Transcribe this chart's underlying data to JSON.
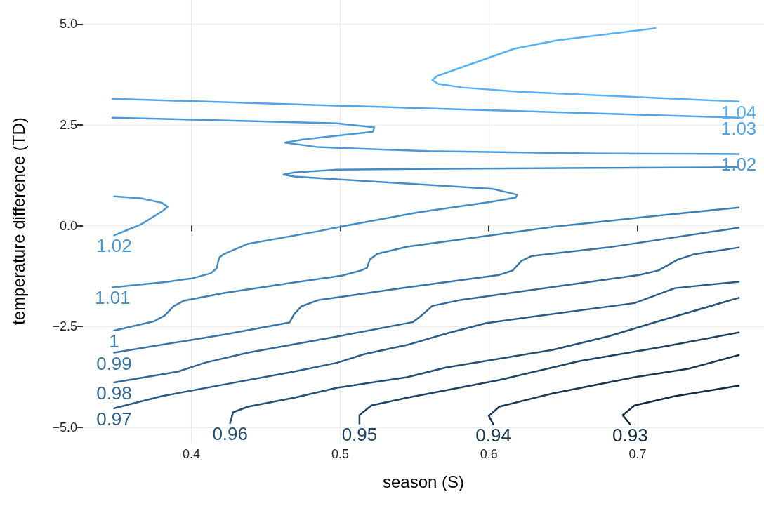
{
  "chart_data": {
    "type": "line",
    "xlabel": "season (S)",
    "ylabel": "temperature difference (TD)",
    "xlim": [
      0.327,
      0.785
    ],
    "ylim": [
      -5.37,
      5.6
    ],
    "xticks": [
      0.4,
      0.5,
      0.6,
      0.7
    ],
    "yticks": [
      {
        "value": -5,
        "label": "−5.0"
      },
      {
        "value": -2.5,
        "label": "−2.5"
      },
      {
        "value": 0,
        "label": "0.0"
      },
      {
        "value": 2.5,
        "label": "2.5"
      },
      {
        "value": 5,
        "label": "5.0"
      }
    ],
    "grid": true,
    "series": [
      {
        "name": "1.04",
        "color": "#56b1f7",
        "x": [
          0.712,
          0.646,
          0.617,
          0.565,
          0.562,
          0.566,
          0.582,
          0.617,
          0.768
        ],
        "values": [
          4.9,
          4.6,
          4.39,
          3.71,
          3.61,
          3.52,
          3.43,
          3.33,
          3.08
        ]
      },
      {
        "name": "1.03",
        "color": "#50a5e7",
        "x": [
          0.347,
          0.559,
          0.768
        ],
        "values": [
          3.15,
          2.91,
          2.68
        ]
      },
      {
        "name": "1.02",
        "color": "#4a99d6",
        "x": [
          0.347,
          0.498,
          0.523,
          0.522,
          0.475,
          0.463,
          0.485,
          0.559,
          0.675,
          0.768
        ],
        "values": [
          2.68,
          2.54,
          2.44,
          2.33,
          2.14,
          2.06,
          1.95,
          1.85,
          1.79,
          1.78
        ]
      },
      {
        "name": "1.02",
        "color": "#4a99d6",
        "x": [
          0.348,
          0.366,
          0.38,
          0.384,
          0.38,
          0.366,
          0.356,
          0.348
        ],
        "values": [
          0.73,
          0.68,
          0.57,
          0.47,
          0.35,
          0.03,
          -0.12,
          -0.24
        ]
      },
      {
        "name": "1.01",
        "color": "#448cc6",
        "x": [
          0.767,
          0.649,
          0.554,
          0.498,
          0.469,
          0.462,
          0.469,
          0.498,
          0.552,
          0.603,
          0.619,
          0.618,
          0.601,
          0.552,
          0.501,
          0.485,
          0.438,
          0.422,
          0.419,
          0.418,
          0.417,
          0.413,
          0.4,
          0.384,
          0.347
        ],
        "values": [
          1.45,
          1.43,
          1.41,
          1.39,
          1.32,
          1.27,
          1.22,
          1.15,
          1.03,
          0.91,
          0.77,
          0.7,
          0.59,
          0.33,
          -0.02,
          -0.14,
          -0.45,
          -0.7,
          -0.78,
          -0.89,
          -1.06,
          -1.18,
          -1.31,
          -1.39,
          -1.53
        ]
      },
      {
        "name": "1",
        "color": "#3e80b6",
        "x": [
          0.768,
          0.716,
          0.643,
          0.545,
          0.525,
          0.52,
          0.518,
          0.514,
          0.501,
          0.469,
          0.422,
          0.395,
          0.388,
          0.382,
          0.375,
          0.348
        ],
        "values": [
          0.45,
          0.26,
          -0.03,
          -0.52,
          -0.7,
          -0.84,
          -1.05,
          -1.11,
          -1.24,
          -1.41,
          -1.67,
          -1.86,
          -2.0,
          -2.23,
          -2.37,
          -2.6
        ]
      },
      {
        "name": "0.99",
        "color": "#3874a5",
        "x": [
          0.768,
          0.68,
          0.629,
          0.622,
          0.616,
          0.607,
          0.545,
          0.485,
          0.474,
          0.469,
          0.466,
          0.422,
          0.348
        ],
        "values": [
          -0.05,
          -0.54,
          -0.75,
          -0.87,
          -1.11,
          -1.22,
          -1.53,
          -1.85,
          -2.0,
          -2.2,
          -2.4,
          -2.7,
          -3.15
        ]
      },
      {
        "name": "0.98",
        "color": "#316895",
        "x": [
          0.768,
          0.738,
          0.727,
          0.714,
          0.701,
          0.58,
          0.562,
          0.554,
          0.549,
          0.498,
          0.438,
          0.409,
          0.391,
          0.348
        ],
        "values": [
          -0.54,
          -0.71,
          -0.84,
          -1.11,
          -1.22,
          -1.85,
          -1.99,
          -2.25,
          -2.39,
          -2.75,
          -3.15,
          -3.4,
          -3.62,
          -3.89
        ]
      },
      {
        "name": "0.97",
        "color": "#2b5c85",
        "x": [
          0.768,
          0.725,
          0.698,
          0.625,
          0.598,
          0.571,
          0.545,
          0.516,
          0.498,
          0.469,
          0.422,
          0.38,
          0.348
        ],
        "values": [
          -1.39,
          -1.55,
          -1.92,
          -2.28,
          -2.42,
          -2.68,
          -2.96,
          -3.19,
          -3.4,
          -3.62,
          -3.94,
          -4.23,
          -4.53
        ]
      },
      {
        "name": "0.96",
        "color": "#255074",
        "x": [
          0.768,
          0.716,
          0.68,
          0.643,
          0.571,
          0.545,
          0.498,
          0.469,
          0.438,
          0.428,
          0.426
        ],
        "values": [
          -1.79,
          -2.35,
          -2.75,
          -3.08,
          -3.52,
          -3.76,
          -4.02,
          -4.27,
          -4.49,
          -4.63,
          -4.9
        ]
      },
      {
        "name": "0.95",
        "color": "#1f4364",
        "x": [
          0.768,
          0.716,
          0.661,
          0.607,
          0.545,
          0.521,
          0.513,
          0.513
        ],
        "values": [
          -2.65,
          -3.01,
          -3.36,
          -3.83,
          -4.27,
          -4.46,
          -4.7,
          -4.91
        ]
      },
      {
        "name": "0.94",
        "color": "#193753",
        "x": [
          0.768,
          0.734,
          0.698,
          0.643,
          0.607,
          0.6,
          0.603
        ],
        "values": [
          -3.21,
          -3.55,
          -3.76,
          -4.16,
          -4.49,
          -4.72,
          -4.93
        ]
      },
      {
        "name": "0.93",
        "color": "#132b43",
        "x": [
          0.768,
          0.725,
          0.698,
          0.69,
          0.695
        ],
        "values": [
          -3.97,
          -4.23,
          -4.46,
          -4.7,
          -4.93
        ]
      }
    ]
  }
}
